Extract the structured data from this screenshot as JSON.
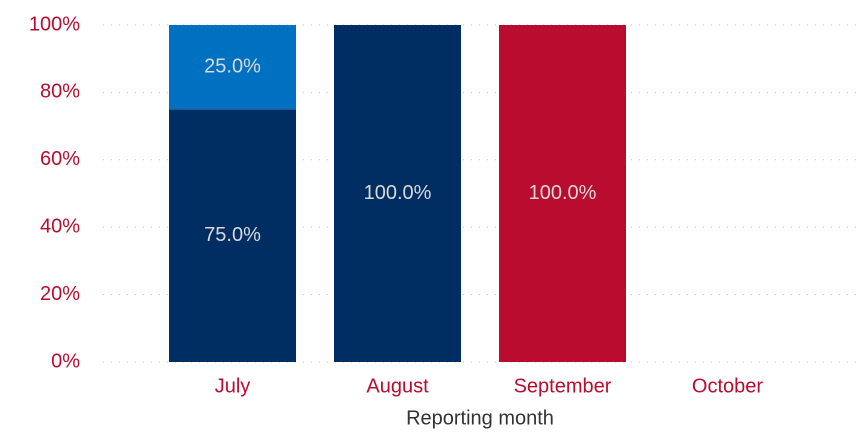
{
  "chart_data": {
    "type": "stacked_bar",
    "xlabel": "Reporting month",
    "categories": [
      "July",
      "August",
      "September",
      "October"
    ],
    "series": [
      {
        "color": "#002d62",
        "values": [
          75,
          100,
          null,
          null
        ],
        "value_labels": [
          "75.0%",
          "100.0%",
          null,
          null
        ]
      },
      {
        "color": "#0070c0",
        "values": [
          25,
          null,
          null,
          null
        ],
        "value_labels": [
          "25.0%",
          null,
          null,
          null
        ]
      },
      {
        "color": "#ba0c2f",
        "values": [
          null,
          null,
          100,
          null
        ],
        "value_labels": [
          null,
          null,
          "100.0%",
          null
        ]
      }
    ],
    "ylim": [
      0,
      100
    ],
    "yticks": [
      {
        "value": 0,
        "label": "0%"
      },
      {
        "value": 20,
        "label": "20%"
      },
      {
        "value": 40,
        "label": "40%"
      },
      {
        "value": 60,
        "label": "60%"
      },
      {
        "value": 80,
        "label": "80%"
      },
      {
        "value": 100,
        "label": "100%"
      }
    ],
    "grid": true
  }
}
